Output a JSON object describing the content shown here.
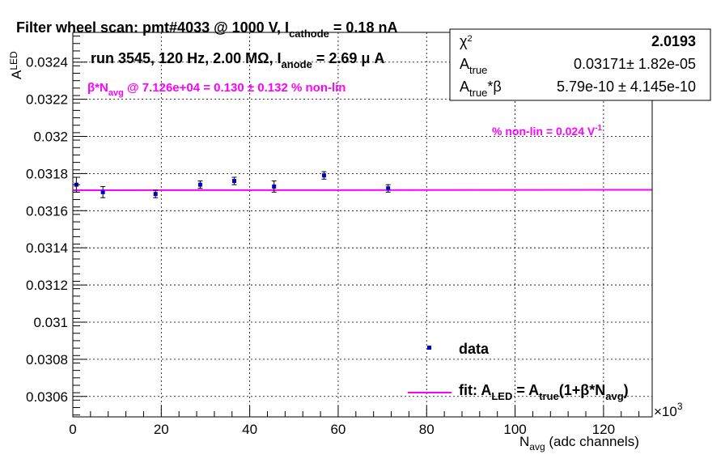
{
  "chart_data": {
    "type": "scatter",
    "title": "Filter wheel scan: pmt#4033 @  1000 V, I",
    "title_sub": "cathode",
    "title_tail": " = 0.18 nA",
    "run_info": "run 3545, 120 Hz, 2.00 MΩ, I",
    "run_sub": "anode",
    "run_tail": " = 2.69 μ A",
    "nonlin_note_head": "β*N",
    "nonlin_note_sub": "avg",
    "nonlin_note_tail": " @ 7.126e+04 = 0.130 ± 0.132 % non-lin",
    "slope_note": "% non-lin = 0.024 V",
    "slope_note_sup": "-1",
    "xlabel_main": "N",
    "xlabel_sub": "avg",
    "xlabel_tail": " (adc channels)",
    "ylabel_main": "A",
    "ylabel_sub": "LED",
    "x_multiplier": "×10",
    "x_multiplier_exp": "3",
    "xlim": [
      0,
      131
    ],
    "ylim": [
      0.03049,
      0.03256
    ],
    "x_ticks": [
      0,
      20,
      40,
      60,
      80,
      100,
      120
    ],
    "y_ticks": [
      0.0306,
      0.0308,
      0.031,
      0.0312,
      0.0314,
      0.0316,
      0.0318,
      0.032,
      0.0322,
      0.0324
    ],
    "y_tick_labels": [
      "0.0306",
      "0.0308",
      "0.031",
      "0.0312",
      "0.0314",
      "0.0316",
      "0.0318",
      "0.032",
      "0.0322",
      "0.0324"
    ],
    "grid": true,
    "series": [
      {
        "name": "data",
        "color": "#0000cc",
        "x": [
          0.8,
          6.8,
          18.7,
          28.8,
          36.5,
          45.5,
          56.8,
          71.3
        ],
        "y": [
          0.03174,
          0.0317,
          0.03169,
          0.03174,
          0.03176,
          0.03173,
          0.03179,
          0.03172
        ],
        "yerr": [
          4e-05,
          3e-05,
          2e-05,
          2e-05,
          2e-05,
          3e-05,
          2e-05,
          2e-05
        ]
      }
    ],
    "fit": {
      "name": "fit: A",
      "color": "#ff00ff",
      "x_range": [
        0,
        131
      ],
      "A_true": 0.03171,
      "beta": 5.79e-10
    },
    "legend": {
      "placement": "bottom-right",
      "data_label": "data",
      "fit_head": "fit: A",
      "fit_s1": "LED",
      "fit_mid": " = A",
      "fit_s2": "true",
      "fit_mid2": "(1+β*N",
      "fit_s3": "avg",
      "fit_end": ")"
    },
    "stats_box": {
      "placement": "top-right",
      "rows": [
        {
          "name_head": "χ",
          "name_sup": "2",
          "name_sub": "",
          "name_tail": "",
          "value": "2.0193"
        },
        {
          "name_head": "A",
          "name_sup": "",
          "name_sub": "true",
          "name_tail": "",
          "value": "0.03171± 1.82e-05"
        },
        {
          "name_head": "A",
          "name_sup": "",
          "name_sub": "true",
          "name_tail": "*β",
          "value": "5.79e-10 ± 4.145e-10"
        }
      ]
    }
  }
}
